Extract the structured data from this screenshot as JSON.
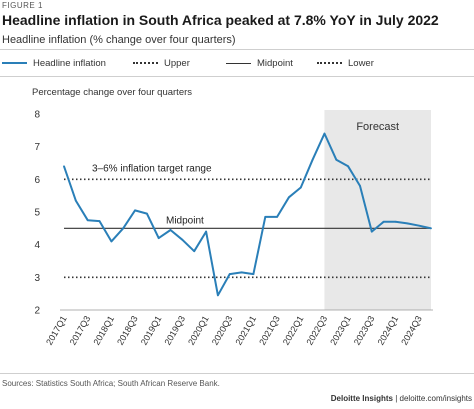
{
  "figure_label": "FIGURE 1",
  "title": "Headline inflation in South Africa peaked at 7.8% YoY in July 2022",
  "subtitle": "Headline inflation (% change over four quarters)",
  "legend": [
    {
      "label": "Headline inflation",
      "style": "solid",
      "color": "#2a7fb8"
    },
    {
      "label": "Upper",
      "style": "dotted",
      "color": "#333333"
    },
    {
      "label": "Midpoint",
      "style": "solid",
      "color": "#333333"
    },
    {
      "label": "Lower",
      "style": "dotted",
      "color": "#333333"
    }
  ],
  "source": "Sources: Statistics South Africa; South African Reserve Bank.",
  "brand": {
    "name": "Deloitte Insights",
    "url": "deloitte.com/insights"
  },
  "chart_data": {
    "type": "line",
    "ylabel": "Percentage change over four quarters",
    "ylim": [
      2,
      8
    ],
    "yticks": [
      2,
      3,
      4,
      5,
      6,
      7,
      8
    ],
    "categories": [
      "2017Q1",
      "2017Q2",
      "2017Q3",
      "2017Q4",
      "2018Q1",
      "2018Q2",
      "2018Q3",
      "2018Q4",
      "2019Q1",
      "2019Q2",
      "2019Q3",
      "2019Q4",
      "2020Q1",
      "2020Q2",
      "2020Q3",
      "2020Q4",
      "2021Q1",
      "2021Q2",
      "2021Q3",
      "2021Q4",
      "2022Q1",
      "2022Q2",
      "2022Q3",
      "2022Q4",
      "2023Q1",
      "2023Q2",
      "2023Q3",
      "2023Q4",
      "2024Q1",
      "2024Q2",
      "2024Q3",
      "2024Q4"
    ],
    "xtick_labels": [
      "2017Q1",
      "2017Q3",
      "2018Q1",
      "2018Q3",
      "2019Q1",
      "2019Q3",
      "2020Q1",
      "2020Q3",
      "2021Q1",
      "2021Q3",
      "2022Q1",
      "2022Q3",
      "2023Q1",
      "2023Q3",
      "2024Q1",
      "2024Q3"
    ],
    "series": [
      {
        "name": "Headline inflation",
        "color": "#2a7fb8",
        "values": [
          6.4,
          5.35,
          4.75,
          4.72,
          4.1,
          4.5,
          5.05,
          4.95,
          4.2,
          4.45,
          4.15,
          3.8,
          4.4,
          2.45,
          3.1,
          3.15,
          3.1,
          4.85,
          4.85,
          5.45,
          5.75,
          6.6,
          7.4,
          6.6,
          6.4,
          5.8,
          4.4,
          4.7,
          4.7,
          4.65,
          4.58,
          4.5
        ]
      }
    ],
    "reference_lines": [
      {
        "name": "Upper",
        "value": 6,
        "style": "dotted"
      },
      {
        "name": "Midpoint",
        "value": 4.5,
        "style": "solid"
      },
      {
        "name": "Lower",
        "value": 3,
        "style": "dotted"
      }
    ],
    "annotations": {
      "target_range": "3–6% inflation target range",
      "midpoint": "Midpoint",
      "forecast": "Forecast"
    },
    "forecast_start": "2022Q3",
    "forecast_end": "2024Q4",
    "forecast_shade_color": "#e8e8e8",
    "grid": false
  }
}
